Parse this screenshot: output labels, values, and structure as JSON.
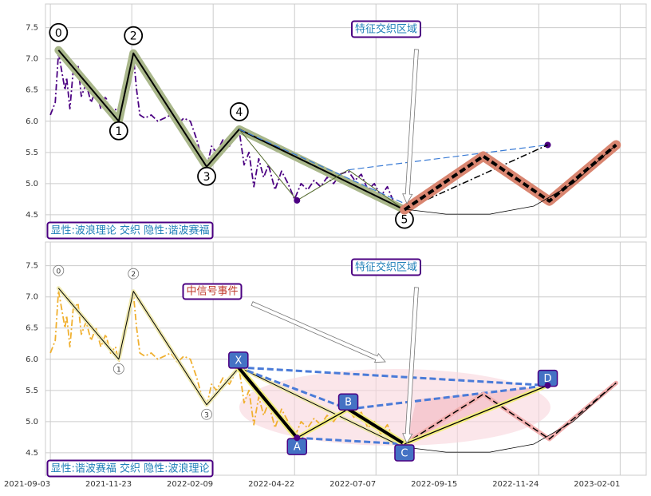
{
  "chart_data": [
    {
      "type": "line",
      "xlim": [
        -3,
        366
      ],
      "ylim": [
        4.14,
        7.88
      ],
      "grid": true,
      "yticks": [
        4.5,
        {
          "value": 5,
          "label": "5.0"
        },
        5.5,
        {
          "value": 6,
          "label": "6.0"
        },
        6.5,
        {
          "value": 7,
          "label": "7.0"
        },
        7.5
      ],
      "xticks": [
        0,
        50,
        100,
        150,
        200,
        250,
        300,
        350
      ],
      "series": [
        {
          "style": "dashdot",
          "color": "#4b0082",
          "width": 1.8,
          "x": [
            0,
            3,
            5,
            7,
            9,
            10,
            12,
            14,
            17,
            19,
            22,
            25,
            28,
            31,
            34,
            37,
            40,
            42,
            45,
            48,
            51,
            53,
            55,
            58,
            62,
            66,
            70,
            74,
            78,
            82,
            86,
            90,
            93,
            96,
            99,
            102,
            106,
            110,
            114,
            116,
            119,
            122,
            125,
            128,
            131,
            134,
            138,
            142,
            146,
            150,
            154,
            158,
            162,
            166,
            170,
            174,
            178,
            183,
            187,
            191,
            195,
            199,
            203,
            207,
            211,
            215
          ],
          "values": [
            6.1,
            6.3,
            7.1,
            6.8,
            6.5,
            6.7,
            6.2,
            6.8,
            6.9,
            6.4,
            6.6,
            6.3,
            6.5,
            6.2,
            6.4,
            6.1,
            6.2,
            5.95,
            6.3,
            6.7,
            7.05,
            6.5,
            6.1,
            6.05,
            6.1,
            6.0,
            6.05,
            6.1,
            5.95,
            6.05,
            6.0,
            5.7,
            5.4,
            5.25,
            5.6,
            5.5,
            5.7,
            5.6,
            5.8,
            5.85,
            5.3,
            5.5,
            4.95,
            5.4,
            5.1,
            5.3,
            4.9,
            5.2,
            5.0,
            4.75,
            5.0,
            4.9,
            5.05,
            4.95,
            5.1,
            5.0,
            5.15,
            5.2,
            5.05,
            5.15,
            4.9,
            5.0,
            4.8,
            4.95,
            4.7,
            4.65
          ]
        },
        {
          "style": "solid",
          "color": "#000000",
          "halo": "#a9b78a",
          "width": 2,
          "label_style": "circle",
          "x": [
            5,
            42,
            51,
            96,
            116,
            217.5
          ],
          "values": [
            7.14,
            6.0,
            7.09,
            5.27,
            5.87,
            4.58
          ],
          "labels": [
            "0",
            "1",
            "2",
            "3",
            "4",
            "5"
          ]
        },
        {
          "style": "solid",
          "color": "#556b2f",
          "width": 1,
          "x": [
            116,
            151.5,
            183,
            217.5
          ],
          "values": [
            5.87,
            4.73,
            5.22,
            4.58
          ]
        },
        {
          "style": "dashed",
          "color": "#3a7bd5",
          "width": 1.2,
          "x": [
            116,
            217.5
          ],
          "values": [
            5.87,
            4.68
          ]
        },
        {
          "style": "dashed",
          "color": "#3a7bd5",
          "width": 1.2,
          "x": [
            183,
            305.5
          ],
          "values": [
            5.22,
            5.62
          ]
        },
        {
          "style": "dots",
          "color": "#4b0082",
          "x": [
            151.5,
            305.5
          ],
          "values": [
            4.73,
            5.62
          ]
        },
        {
          "style": "dashdot",
          "color": "#000000",
          "width": 1.5,
          "x": [
            217.5,
            305.5
          ],
          "values": [
            4.58,
            5.62
          ]
        },
        {
          "style": "dashed",
          "color": "#000000",
          "halo": "#d98570",
          "width": 4,
          "x": [
            217.5,
            265.9,
            306.5,
            347.5
          ],
          "values": [
            4.58,
            5.44,
            4.72,
            5.62
          ]
        },
        {
          "style": "solid",
          "color": "#000000",
          "width": 0.8,
          "x": [
            217.5,
            243,
            270,
            297,
            321,
            347.5
          ],
          "values": [
            4.59,
            4.51,
            4.51,
            4.64,
            5.0,
            5.62
          ]
        }
      ],
      "annotations": [
        "特征交织区域"
      ],
      "note": "显性:波浪理论 交织 隐性:谐波赛福"
    },
    {
      "type": "line",
      "xlim": [
        -3,
        366
      ],
      "ylim": [
        4.14,
        7.88
      ],
      "grid": true,
      "yticks": [
        4.5,
        {
          "value": 5,
          "label": "5.0"
        },
        5.5,
        {
          "value": 6,
          "label": "6.0"
        },
        6.5,
        {
          "value": 7,
          "label": "7.0"
        },
        7.5
      ],
      "xticks": [
        {
          "value": 0,
          "label": "2021-09-03"
        },
        {
          "value": 50,
          "label": "2021-11-23"
        },
        {
          "value": 100,
          "label": "2022-02-09"
        },
        {
          "value": 150,
          "label": "2022-04-22"
        },
        {
          "value": 200,
          "label": "2022-07-07"
        },
        {
          "value": 250,
          "label": "2022-09-15"
        },
        {
          "value": 300,
          "label": "2022-11-24"
        },
        {
          "value": 350,
          "label": "2023-02-01"
        }
      ],
      "series": [
        {
          "style": "dashdot",
          "color": "#f0b030",
          "width": 1.8,
          "x": [
            0,
            3,
            5,
            7,
            9,
            10,
            12,
            14,
            17,
            19,
            22,
            25,
            28,
            31,
            34,
            37,
            40,
            42,
            45,
            48,
            51,
            53,
            55,
            58,
            62,
            66,
            70,
            74,
            78,
            82,
            86,
            90,
            93,
            96,
            99,
            102,
            106,
            110,
            114,
            116,
            119,
            122,
            125,
            128,
            131,
            134,
            138,
            142,
            146,
            150,
            154,
            158,
            162,
            166,
            170,
            174,
            178,
            183,
            187,
            191,
            195,
            199,
            203,
            207,
            211,
            215
          ],
          "values": [
            6.1,
            6.3,
            7.1,
            6.8,
            6.5,
            6.7,
            6.2,
            6.8,
            6.9,
            6.4,
            6.6,
            6.3,
            6.5,
            6.2,
            6.4,
            6.1,
            6.2,
            5.95,
            6.3,
            6.7,
            7.05,
            6.5,
            6.1,
            6.05,
            6.1,
            6.0,
            6.05,
            6.1,
            5.95,
            6.05,
            6.0,
            5.7,
            5.4,
            5.25,
            5.6,
            5.5,
            5.7,
            5.6,
            5.8,
            5.85,
            5.3,
            5.5,
            4.95,
            5.4,
            5.1,
            5.3,
            4.9,
            5.2,
            5.0,
            4.75,
            5.0,
            4.9,
            5.05,
            4.95,
            5.1,
            5.0,
            5.15,
            5.2,
            5.05,
            5.15,
            4.9,
            5.0,
            4.8,
            4.95,
            4.7,
            4.65
          ]
        },
        {
          "style": "solid",
          "color": "#000000",
          "halo": "#efe9b0",
          "width": 1,
          "label_style": "small-circle",
          "x": [
            5,
            42,
            51,
            96,
            116,
            217.5
          ],
          "values": [
            7.14,
            6.0,
            7.09,
            5.27,
            5.87,
            4.58
          ],
          "labels": [
            "0",
            "1",
            "2",
            "3",
            null,
            null
          ]
        },
        {
          "style": "dashed",
          "color": "#4a7bd8",
          "width": 3,
          "x": [
            115.5,
            183
          ],
          "values": [
            5.87,
            5.2
          ]
        },
        {
          "style": "dashed",
          "color": "#4a7bd8",
          "width": 3,
          "x": [
            115.5,
            305.5
          ],
          "values": [
            5.87,
            5.58
          ]
        },
        {
          "style": "dashed",
          "color": "#4a7bd8",
          "width": 3,
          "x": [
            151.5,
            217.5
          ],
          "values": [
            4.74,
            4.64
          ]
        },
        {
          "style": "dashed",
          "color": "#4a7bd8",
          "width": 3,
          "x": [
            183,
            305.5
          ],
          "values": [
            5.2,
            5.58
          ]
        },
        {
          "style": "dashed",
          "color": "#000000",
          "halo": "#f2b0b0",
          "width": 1.5,
          "x": [
            217.5,
            265.9,
            306.5,
            347.5
          ],
          "values": [
            4.64,
            5.44,
            4.72,
            5.62
          ]
        },
        {
          "style": "solid",
          "color": "#000000",
          "width": 0.8,
          "x": [
            217.5,
            243,
            270,
            297,
            321,
            347.5
          ],
          "values": [
            4.59,
            4.51,
            4.51,
            4.64,
            5.0,
            5.62
          ]
        },
        {
          "style": "pattern",
          "color": "#000000",
          "halo": "#f3ee80",
          "width": 4,
          "label_style": "box",
          "x": [
            115.5,
            151.5,
            183,
            217.5,
            305.5
          ],
          "values": [
            5.87,
            4.74,
            5.2,
            4.64,
            5.58
          ],
          "labels": [
            "X",
            "A",
            "B",
            "C",
            "D"
          ]
        },
        {
          "style": "dots",
          "color": "#4b0082",
          "x": [
            151.5,
            305.5
          ],
          "values": [
            4.74,
            5.58
          ]
        }
      ],
      "annotations": [
        "特征交织区域",
        "中信号事件"
      ],
      "note": "显性:谐波赛福 交织 隐性:波浪理论"
    }
  ]
}
